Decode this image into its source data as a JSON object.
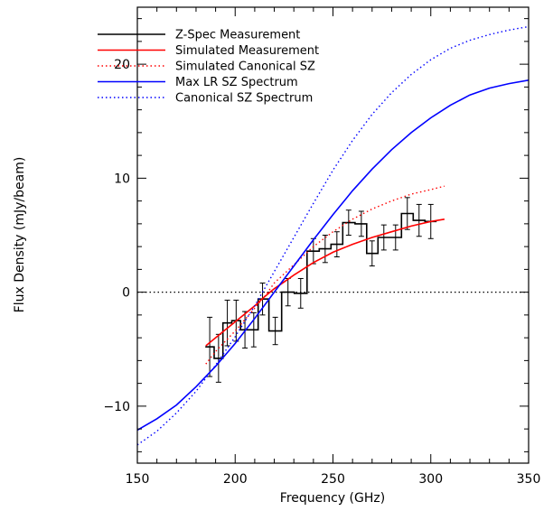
{
  "chart_data": {
    "type": "line",
    "xlabel": "Frequency (GHz)",
    "ylabel": "Flux Density (mJy/beam)",
    "xlim": [
      150,
      350
    ],
    "ylim": [
      -15,
      25
    ],
    "xticks": [
      150,
      200,
      250,
      300,
      350
    ],
    "yticks": [
      -10,
      0,
      10,
      20
    ],
    "x_minor_step": 10,
    "y_minor_step": 2,
    "grid": false,
    "legend_position": "top-left",
    "zero_line": {
      "y": 0,
      "style": "dotted",
      "color": "#000000"
    },
    "series": [
      {
        "name": "Z-Spec Measurement",
        "kind": "step-errorbars",
        "color": "#000000",
        "dash": "solid",
        "x": [
          187.0,
          191.5,
          196.0,
          200.5,
          205.0,
          209.5,
          214.0,
          220.5,
          227.0,
          233.5,
          240.0,
          246.0,
          252.0,
          258.0,
          264.5,
          270.0,
          276.0,
          282.0,
          288.0,
          294.0,
          300.0
        ],
        "y": [
          -4.8,
          -5.8,
          -2.7,
          -2.5,
          -3.3,
          -3.3,
          -0.6,
          -3.4,
          0.0,
          -0.1,
          3.6,
          3.8,
          4.2,
          6.1,
          6.0,
          3.4,
          4.8,
          4.8,
          6.9,
          6.3,
          6.2
        ],
        "yerr": [
          2.6,
          2.1,
          2.0,
          1.8,
          1.6,
          1.5,
          1.4,
          1.2,
          1.2,
          1.3,
          1.1,
          1.2,
          1.1,
          1.1,
          1.1,
          1.1,
          1.1,
          1.1,
          1.4,
          1.4,
          1.5
        ]
      },
      {
        "name": "Simulated Measurement",
        "kind": "line",
        "color": "#ff0000",
        "dash": "solid",
        "x": [
          185,
          190,
          195,
          200,
          205,
          210,
          215,
          220,
          225,
          230,
          240,
          250,
          260,
          270,
          280,
          290,
          300,
          307
        ],
        "y": [
          -4.7,
          -4.0,
          -3.3,
          -2.6,
          -1.9,
          -1.2,
          -0.4,
          0.3,
          0.9,
          1.5,
          2.6,
          3.5,
          4.2,
          4.8,
          5.3,
          5.8,
          6.2,
          6.4
        ]
      },
      {
        "name": "Simulated Canonical SZ",
        "kind": "line",
        "color": "#ff0000",
        "dash": "dotted",
        "x": [
          185,
          190,
          195,
          200,
          205,
          210,
          215,
          220,
          225,
          230,
          240,
          250,
          260,
          270,
          280,
          290,
          300,
          307
        ],
        "y": [
          -6.3,
          -5.2,
          -4.3,
          -3.4,
          -2.4,
          -1.4,
          -0.4,
          0.8,
          1.6,
          2.4,
          4.0,
          5.3,
          6.4,
          7.3,
          8.0,
          8.6,
          9.0,
          9.3
        ]
      },
      {
        "name": "Max LR SZ Spectrum",
        "kind": "line",
        "color": "#0000ff",
        "dash": "solid",
        "x": [
          150,
          160,
          170,
          180,
          190,
          200,
          210,
          220,
          230,
          240,
          250,
          260,
          270,
          280,
          290,
          300,
          310,
          320,
          330,
          340,
          350
        ],
        "y": [
          -12.1,
          -11.1,
          -9.9,
          -8.3,
          -6.5,
          -4.5,
          -2.3,
          0.0,
          2.3,
          4.6,
          6.8,
          8.9,
          10.8,
          12.5,
          14.0,
          15.3,
          16.4,
          17.3,
          17.9,
          18.3,
          18.6
        ]
      },
      {
        "name": "Canonical SZ Spectrum",
        "kind": "line",
        "color": "#0000ff",
        "dash": "dotted",
        "x": [
          150,
          160,
          170,
          180,
          190,
          200,
          210,
          220,
          230,
          240,
          250,
          260,
          270,
          280,
          290,
          300,
          310,
          320,
          330,
          340,
          350
        ],
        "y": [
          -13.4,
          -12.2,
          -10.6,
          -8.7,
          -6.4,
          -3.9,
          -1.2,
          1.8,
          4.8,
          7.8,
          10.7,
          13.3,
          15.6,
          17.5,
          19.1,
          20.4,
          21.4,
          22.1,
          22.6,
          23.0,
          23.3
        ]
      }
    ]
  }
}
